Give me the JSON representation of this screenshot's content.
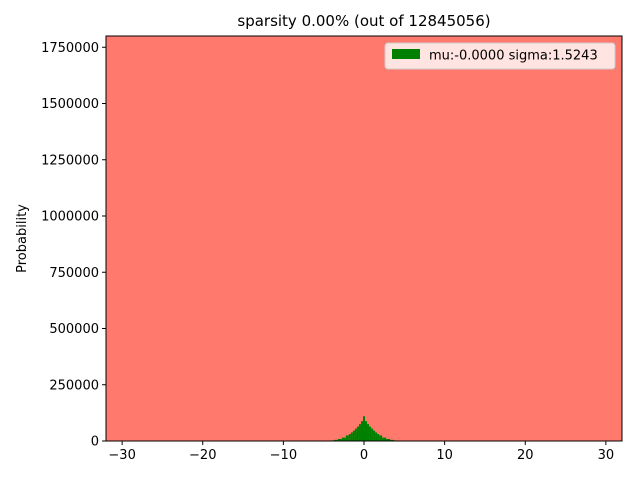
{
  "chart_data": {
    "type": "bar",
    "title": "sparsity 0.00% (out of 12845056)",
    "xlabel": "",
    "ylabel": "Probability",
    "xlim": [
      -32,
      32
    ],
    "ylim": [
      0,
      1800000
    ],
    "xticks": [
      -30,
      -20,
      -10,
      0,
      10,
      20,
      30
    ],
    "xtick_labels": [
      "−30",
      "−20",
      "−10",
      "0",
      "10",
      "20",
      "30"
    ],
    "yticks": [
      0,
      250000,
      500000,
      750000,
      1000000,
      1250000,
      1500000,
      1750000
    ],
    "ytick_labels": [
      "0",
      "250000",
      "500000",
      "750000",
      "1000000",
      "1250000",
      "1500000",
      "1750000"
    ],
    "grid": false,
    "legend": "top-right",
    "background_color": "#ff796c",
    "series": [
      {
        "name": "mu:-0.0000 sigma:1.5243",
        "color": "#008000",
        "x": [
          -4.5,
          -4.0,
          -3.5,
          -3.0,
          -2.5,
          -2.0,
          -1.75,
          -1.5,
          -1.25,
          -1.0,
          -0.75,
          -0.5,
          -0.25,
          0.0,
          0.25,
          0.5,
          0.75,
          1.0,
          1.25,
          1.5,
          1.75,
          2.0,
          2.5,
          3.0,
          3.5,
          4.0,
          4.5
        ],
        "values": [
          1000,
          2500,
          5000,
          9000,
          15000,
          25000,
          31000,
          38000,
          46000,
          55000,
          64000,
          75000,
          88000,
          110000,
          88000,
          75000,
          64000,
          55000,
          46000,
          38000,
          31000,
          25000,
          15000,
          9000,
          5000,
          2500,
          1000
        ]
      }
    ]
  }
}
